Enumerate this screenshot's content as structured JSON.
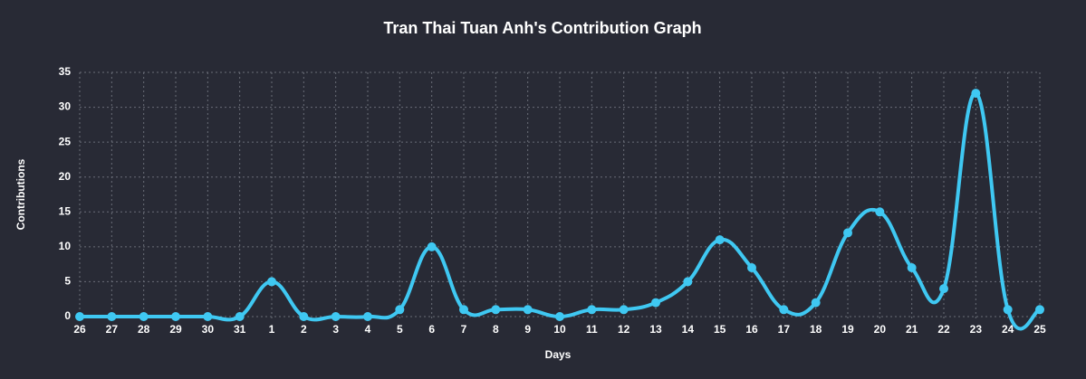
{
  "chart_data": {
    "type": "line",
    "title": "Tran Thai Tuan Anh's Contribution Graph",
    "x_label": "Days",
    "y_label": "Contributions",
    "categories": [
      "26",
      "27",
      "28",
      "29",
      "30",
      "31",
      "1",
      "2",
      "3",
      "4",
      "5",
      "6",
      "7",
      "8",
      "9",
      "10",
      "11",
      "12",
      "13",
      "14",
      "15",
      "16",
      "17",
      "18",
      "19",
      "20",
      "21",
      "22",
      "23",
      "24",
      "25"
    ],
    "series": [
      {
        "name": "Contributions",
        "color": "#3fc8f2",
        "values": [
          0,
          0,
          0,
          0,
          0,
          0,
          5,
          0,
          0,
          0,
          1,
          10,
          1,
          1,
          1,
          0,
          1,
          1,
          2,
          5,
          11,
          7,
          1,
          2,
          12,
          15,
          7,
          4,
          32,
          1,
          1
        ]
      }
    ],
    "ylim": [
      0,
      35
    ],
    "yticks": [
      0,
      5,
      10,
      15,
      20,
      25,
      30,
      35
    ],
    "grid": true
  }
}
